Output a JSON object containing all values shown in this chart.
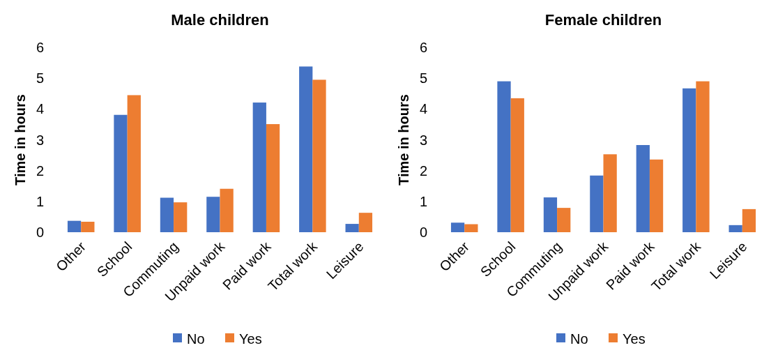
{
  "chart_data": [
    {
      "type": "bar",
      "title": "Male children",
      "ylabel": "Time in hours",
      "categories": [
        "Other",
        "School",
        "Commuting",
        "Unpaid work",
        "Paid work",
        "Total work",
        "Leisure"
      ],
      "ylim": [
        0,
        6
      ],
      "yticks": [
        0,
        1,
        2,
        3,
        4,
        5,
        6
      ],
      "grid": false,
      "legend": "bottom",
      "series": [
        {
          "name": "No",
          "color": "#4472c4",
          "values": [
            0.37,
            3.81,
            1.12,
            1.15,
            4.21,
            5.38,
            0.27
          ]
        },
        {
          "name": "Yes",
          "color": "#ed7d31",
          "values": [
            0.34,
            4.45,
            0.97,
            1.41,
            3.51,
            4.95,
            0.63
          ]
        }
      ]
    },
    {
      "type": "bar",
      "title": "Female children",
      "ylabel": "Time in hours",
      "categories": [
        "Other",
        "School",
        "Commuting",
        "Unpaid work",
        "Paid work",
        "Total work",
        "Leisure"
      ],
      "ylim": [
        0,
        6
      ],
      "yticks": [
        0,
        1,
        2,
        3,
        4,
        5,
        6
      ],
      "grid": false,
      "legend": "bottom",
      "series": [
        {
          "name": "No",
          "color": "#4472c4",
          "values": [
            0.31,
            4.9,
            1.13,
            1.84,
            2.83,
            4.67,
            0.23
          ]
        },
        {
          "name": "Yes",
          "color": "#ed7d31",
          "values": [
            0.26,
            4.35,
            0.79,
            2.53,
            2.36,
            4.9,
            0.75
          ]
        }
      ]
    }
  ]
}
